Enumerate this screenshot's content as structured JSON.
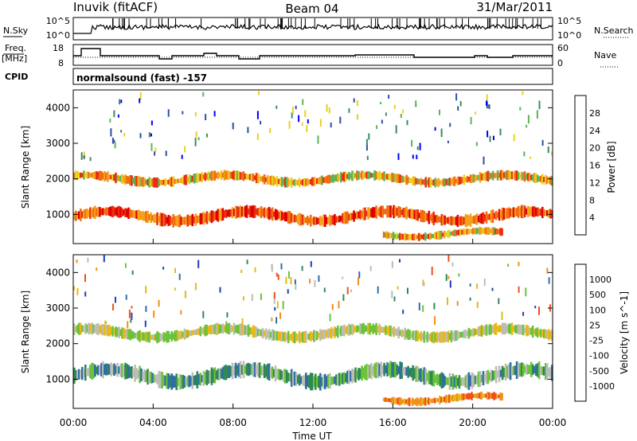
{
  "header": {
    "station": "Inuvik (fitACF)",
    "beam": "Beam 04",
    "date": "31/Mar/2011"
  },
  "noise_panel": {
    "left_label": "N.Sky",
    "right_label": "N.Search",
    "left_ticks": [
      "10^5",
      "10^0"
    ],
    "right_ticks": [
      "10^5",
      "10^0"
    ]
  },
  "freq_panel": {
    "left_label_line1": "Freq.",
    "left_label_line2": "[MHz]",
    "right_label": "Nave",
    "left_ticks": [
      "18",
      "8"
    ],
    "right_ticks": [
      "60",
      "0"
    ]
  },
  "cpid": {
    "label": "CPID",
    "program": "normalsound (fast) -157"
  },
  "colors": {
    "power_scale": [
      "#0000ff",
      "#2d4ea8",
      "#3a8c62",
      "#5fb35a",
      "#e8d21f",
      "#f4a21a",
      "#f26d12",
      "#e8300f",
      "#e00000"
    ],
    "velocity_scale": [
      "#1f3fb4",
      "#2d6da8",
      "#2f8a52",
      "#6cc23a",
      "#bdbdb6",
      "#e8b81a",
      "#f2901a",
      "#f0501a",
      "#e00000"
    ]
  },
  "chart_data": [
    {
      "type": "heatmap",
      "title": "",
      "xlabel": "",
      "ylabel": "Slant Range [km]",
      "xlim": [
        "00:00",
        "24:00"
      ],
      "ylim": [
        180,
        4500
      ],
      "yticks": [
        "1000",
        "2000",
        "3000",
        "4000"
      ],
      "colorbar": {
        "label": "Power [dB]",
        "ticks": [
          "4",
          "8",
          "12",
          "16",
          "20",
          "24",
          "28"
        ],
        "range": [
          0,
          30
        ]
      },
      "echo_bands": [
        {
          "name": "",
          "t_start": 0.0,
          "t_end": 24.0,
          "range_center": 950,
          "range_width": 380,
          "power": 26
        },
        {
          "name": "",
          "t_start": 0.0,
          "t_end": 24.0,
          "range_center": 2000,
          "range_width": 300,
          "power": 20
        },
        {
          "name": "",
          "t_start": 15.5,
          "t_end": 21.5,
          "range_center": 450,
          "range_width": 250,
          "power": 22
        }
      ]
    },
    {
      "type": "heatmap",
      "title": "",
      "xlabel": "Time UT",
      "ylabel": "Slant Range [km]",
      "xlim": [
        "00:00",
        "24:00"
      ],
      "ylim": [
        180,
        4500
      ],
      "xticks": [
        "00:00",
        "04:00",
        "08:00",
        "12:00",
        "16:00",
        "20:00",
        "00:00"
      ],
      "yticks": [
        "1000",
        "2000",
        "3000",
        "4000"
      ],
      "colorbar": {
        "label": "Velocity [m s^-1]",
        "ticks": [
          "1000",
          "500",
          "100",
          "25",
          "-25",
          "-100",
          "-500",
          "-1000"
        ]
      },
      "echo_bands": [
        {
          "name": "",
          "t_start": 0.0,
          "t_end": 24.0,
          "range_center": 1100,
          "range_width": 500,
          "velocity": 80
        },
        {
          "name": "",
          "t_start": 0.0,
          "t_end": 24.0,
          "range_center": 2300,
          "range_width": 350,
          "velocity": 0
        },
        {
          "name": "",
          "t_start": 15.5,
          "t_end": 21.5,
          "range_center": 450,
          "range_width": 250,
          "velocity": -120
        }
      ]
    }
  ]
}
